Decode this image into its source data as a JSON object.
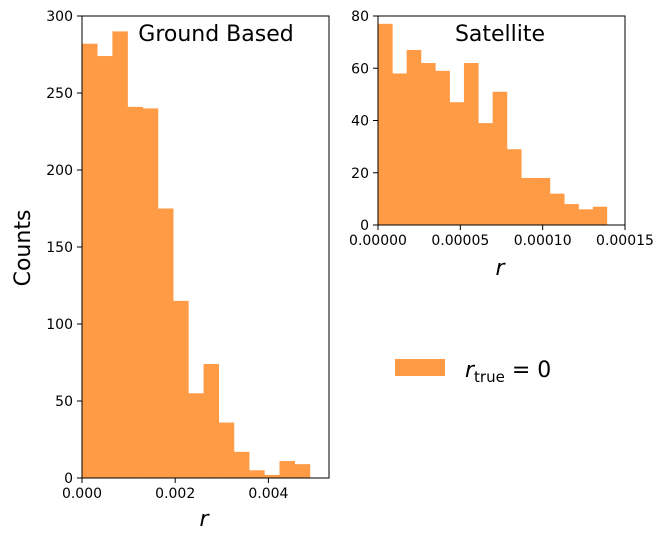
{
  "colors": {
    "bar": "#ff9a45",
    "axis": "#000000",
    "background": "#ffffff"
  },
  "chart_data": [
    {
      "type": "bar",
      "title": "Ground Based",
      "xlabel": "r",
      "ylabel": "Counts",
      "xlim": [
        0,
        0.0053
      ],
      "ylim": [
        0,
        300
      ],
      "xticks": [
        0,
        0.002,
        0.004
      ],
      "xtick_labels": [
        "0.000",
        "0.002",
        "0.004"
      ],
      "yticks": [
        0,
        50,
        100,
        150,
        200,
        250,
        300
      ],
      "ytick_labels": [
        "0",
        "50",
        "100",
        "150",
        "200",
        "250",
        "300"
      ],
      "bin_edges": [
        0,
        0.000326,
        0.000652,
        0.000978,
        0.001304,
        0.00163,
        0.001956,
        0.002282,
        0.002608,
        0.002934,
        0.00326,
        0.003586,
        0.003912,
        0.004238,
        0.004564,
        0.00489
      ],
      "values": [
        282,
        274,
        290,
        241,
        240,
        175,
        115,
        55,
        74,
        36,
        17,
        5,
        2,
        11,
        9
      ]
    },
    {
      "type": "bar",
      "title": "Satellite",
      "xlabel": "r",
      "ylabel": "",
      "xlim": [
        0,
        0.00015
      ],
      "ylim": [
        0,
        80
      ],
      "xticks": [
        0,
        5e-05,
        0.0001,
        0.00015
      ],
      "xtick_labels": [
        "0.00000",
        "0.00005",
        "0.00010",
        "0.00015"
      ],
      "yticks": [
        0,
        20,
        40,
        60,
        80
      ],
      "ytick_labels": [
        "0",
        "20",
        "40",
        "60",
        "80"
      ],
      "bin_edges": [
        0,
        8.7e-06,
        1.74e-05,
        2.61e-05,
        3.48e-05,
        4.35e-05,
        5.22e-05,
        6.09e-05,
        6.96e-05,
        7.83e-05,
        8.7e-05,
        9.57e-05,
        0.0001044,
        0.0001131,
        0.0001218,
        0.0001305,
        0.000139
      ],
      "values": [
        77,
        58,
        67,
        62,
        59,
        47,
        62,
        39,
        51,
        29,
        18,
        18,
        12,
        8,
        6,
        7
      ]
    }
  ],
  "legend": {
    "label_main": "r",
    "label_sub": "true",
    "label_tail": " = 0"
  }
}
